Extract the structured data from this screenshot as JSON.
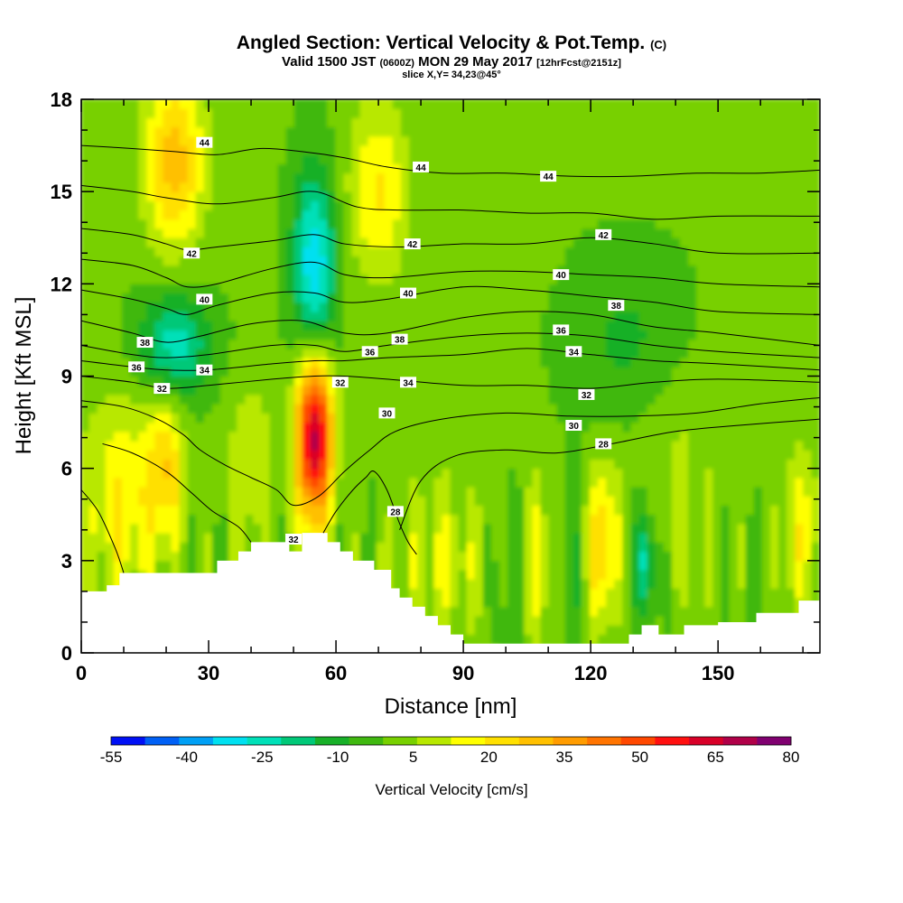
{
  "title": {
    "main": "Angled Section: Vertical Velocity & Pot.Temp.",
    "copyright": "(C)",
    "valid_a": "Valid 1500 JST",
    "valid_z": "(0600Z)",
    "valid_b": "MON 29 May 2017",
    "forecast": "[12hrFcst@2151z]",
    "slice": "slice X,Y= 34,23@45°"
  },
  "chart_data": {
    "type": "heatmap",
    "xlabel": "Distance [nm]",
    "ylabel": "Height [Kft MSL]",
    "xlim": [
      0,
      174
    ],
    "ylim": [
      0,
      18
    ],
    "x_ticks": [
      0,
      30,
      60,
      90,
      120,
      150
    ],
    "y_ticks": [
      0,
      3,
      6,
      9,
      12,
      15,
      18
    ],
    "colorbar": {
      "label": "Vertical Velocity [cm/s]",
      "ticks": [
        -55,
        -40,
        -25,
        -10,
        5,
        20,
        35,
        50,
        65,
        80
      ],
      "colors": [
        "#0010f5",
        "#0060f5",
        "#00a0f5",
        "#00e0f0",
        "#00e0b8",
        "#00c878",
        "#18b028",
        "#40b810",
        "#78d000",
        "#b8e800",
        "#ffff00",
        "#ffe000",
        "#ffc000",
        "#ff9c00",
        "#ff7400",
        "#ff4800",
        "#ff1010",
        "#d80028",
        "#b00048",
        "#800070"
      ]
    },
    "field_features": [
      {
        "x": 55,
        "y": 7,
        "value": 70,
        "sx": 3,
        "sy": 2
      },
      {
        "x": 55,
        "y": 12.5,
        "value": -35,
        "sx": 3.5,
        "sy": 2.2
      },
      {
        "x": 22,
        "y": 10,
        "value": -25,
        "sx": 6,
        "sy": 1.2
      },
      {
        "x": 22,
        "y": 16,
        "value": 30,
        "sx": 5,
        "sy": 2
      },
      {
        "x": 20,
        "y": 6,
        "value": 22,
        "sx": 3,
        "sy": 1.6
      },
      {
        "x": 123,
        "y": 3.5,
        "value": 27,
        "sx": 2.5,
        "sy": 1.8
      },
      {
        "x": 133,
        "y": 3,
        "value": -25,
        "sx": 2,
        "sy": 1.3
      },
      {
        "x": 10,
        "y": 5,
        "value": 18,
        "sx": 7,
        "sy": 2.5
      },
      {
        "x": 70,
        "y": 15,
        "value": 20,
        "sx": 5,
        "sy": 2
      },
      {
        "x": 130,
        "y": 10,
        "value": -10,
        "sx": 10,
        "sy": 2
      },
      {
        "x": 85,
        "y": 3,
        "value": 12,
        "sx": 8,
        "sy": 2
      },
      {
        "x": 108,
        "y": 3,
        "value": 14,
        "sx": 2.5,
        "sy": 2
      },
      {
        "x": 100,
        "y": 2.5,
        "value": -8,
        "sx": 2,
        "sy": 2
      },
      {
        "x": 115,
        "y": 2.5,
        "value": -8,
        "sx": 2,
        "sy": 2
      },
      {
        "x": 170,
        "y": 4,
        "value": 15,
        "sx": 4,
        "sy": 2
      },
      {
        "x": 40,
        "y": 6,
        "value": 12,
        "sx": 4,
        "sy": 2
      },
      {
        "x": 140,
        "y": 6,
        "value": 8,
        "sx": 8,
        "sy": 3
      }
    ],
    "terrain": [
      [
        0,
        2
      ],
      [
        6,
        2
      ],
      [
        6,
        2.2
      ],
      [
        9,
        2.2
      ],
      [
        9,
        2.6
      ],
      [
        12,
        2.6
      ],
      [
        12,
        2.6
      ],
      [
        32,
        2.6
      ],
      [
        32,
        3
      ],
      [
        37,
        3
      ],
      [
        37,
        3.3
      ],
      [
        40,
        3.3
      ],
      [
        40,
        3.6
      ],
      [
        49,
        3.6
      ],
      [
        49,
        3.3
      ],
      [
        52,
        3.3
      ],
      [
        52,
        3.9
      ],
      [
        58,
        3.9
      ],
      [
        58,
        3.6
      ],
      [
        61,
        3.6
      ],
      [
        61,
        3.3
      ],
      [
        64,
        3.3
      ],
      [
        64,
        3
      ],
      [
        69,
        3
      ],
      [
        69,
        2.7
      ],
      [
        73,
        2.7
      ],
      [
        73,
        2.1
      ],
      [
        75,
        2.1
      ],
      [
        75,
        1.8
      ],
      [
        78,
        1.8
      ],
      [
        78,
        1.5
      ],
      [
        81,
        1.5
      ],
      [
        81,
        1.2
      ],
      [
        84,
        1.2
      ],
      [
        84,
        0.9
      ],
      [
        87,
        0.9
      ],
      [
        87,
        0.6
      ],
      [
        90,
        0.6
      ],
      [
        90,
        0.3
      ],
      [
        129,
        0.3
      ],
      [
        129,
        0.6
      ],
      [
        132,
        0.6
      ],
      [
        132,
        0.9
      ],
      [
        136,
        0.9
      ],
      [
        136,
        0.6
      ],
      [
        142,
        0.6
      ],
      [
        142,
        0.9
      ],
      [
        150,
        0.9
      ],
      [
        150,
        1
      ],
      [
        159,
        1
      ],
      [
        159,
        1.3
      ],
      [
        169,
        1.3
      ],
      [
        169,
        1.7
      ],
      [
        174,
        1.7
      ]
    ],
    "contours": [
      {
        "label": "44",
        "points": [
          [
            0,
            16.5
          ],
          [
            12,
            16.4
          ],
          [
            22,
            16.3
          ],
          [
            32,
            16.2
          ],
          [
            42,
            16.4
          ],
          [
            52,
            16.3
          ],
          [
            62,
            16.1
          ],
          [
            72,
            15.8
          ],
          [
            85,
            15.6
          ],
          [
            100,
            15.6
          ],
          [
            115,
            15.5
          ],
          [
            130,
            15.5
          ],
          [
            145,
            15.6
          ],
          [
            160,
            15.6
          ],
          [
            174,
            15.7
          ]
        ]
      },
      {
        "label": "",
        "points": [
          [
            0,
            15.2
          ],
          [
            12,
            15.0
          ],
          [
            20,
            14.8
          ],
          [
            32,
            14.6
          ],
          [
            45,
            14.8
          ],
          [
            55,
            15.0
          ],
          [
            65,
            14.5
          ],
          [
            75,
            14.4
          ],
          [
            90,
            14.4
          ],
          [
            105,
            14.3
          ],
          [
            120,
            14.3
          ],
          [
            135,
            14.1
          ],
          [
            150,
            14.2
          ],
          [
            174,
            14.2
          ]
        ]
      },
      {
        "label": "42",
        "points": [
          [
            0,
            13.8
          ],
          [
            12,
            13.6
          ],
          [
            20,
            13.3
          ],
          [
            25,
            13.1
          ],
          [
            32,
            13.2
          ],
          [
            45,
            13.4
          ],
          [
            55,
            13.6
          ],
          [
            62,
            13.3
          ],
          [
            75,
            13.2
          ],
          [
            90,
            13.3
          ],
          [
            105,
            13.3
          ],
          [
            120,
            13.5
          ],
          [
            135,
            13.3
          ],
          [
            150,
            13.0
          ],
          [
            174,
            13.0
          ]
        ]
      },
      {
        "label": "",
        "points": [
          [
            0,
            12.8
          ],
          [
            12,
            12.6
          ],
          [
            20,
            12.2
          ],
          [
            25,
            11.9
          ],
          [
            32,
            12.0
          ],
          [
            45,
            12.5
          ],
          [
            55,
            12.7
          ],
          [
            62,
            12.3
          ],
          [
            72,
            12.2
          ],
          [
            90,
            12.4
          ],
          [
            105,
            12.4
          ],
          [
            120,
            12.3
          ],
          [
            135,
            12.2
          ],
          [
            150,
            12.0
          ],
          [
            174,
            11.9
          ]
        ]
      },
      {
        "label": "40",
        "points": [
          [
            0,
            11.8
          ],
          [
            12,
            11.5
          ],
          [
            20,
            11.2
          ],
          [
            25,
            11.0
          ],
          [
            32,
            11.3
          ],
          [
            45,
            11.7
          ],
          [
            55,
            11.7
          ],
          [
            62,
            11.4
          ],
          [
            72,
            11.5
          ],
          [
            90,
            11.9
          ],
          [
            105,
            11.8
          ],
          [
            120,
            11.6
          ],
          [
            135,
            11.4
          ],
          [
            150,
            11.1
          ],
          [
            174,
            11.0
          ]
        ]
      },
      {
        "label": "38",
        "points": [
          [
            0,
            10.8
          ],
          [
            12,
            10.4
          ],
          [
            20,
            10.1
          ],
          [
            28,
            10.3
          ],
          [
            40,
            10.7
          ],
          [
            52,
            10.8
          ],
          [
            62,
            10.4
          ],
          [
            72,
            10.4
          ],
          [
            90,
            10.9
          ],
          [
            105,
            11.1
          ],
          [
            120,
            11.0
          ],
          [
            135,
            10.6
          ],
          [
            150,
            10.4
          ],
          [
            174,
            10.0
          ]
        ]
      },
      {
        "label": "36",
        "points": [
          [
            0,
            10.0
          ],
          [
            12,
            9.7
          ],
          [
            20,
            9.6
          ],
          [
            30,
            9.7
          ],
          [
            45,
            10.0
          ],
          [
            55,
            10.0
          ],
          [
            62,
            9.8
          ],
          [
            72,
            10.0
          ],
          [
            90,
            10.3
          ],
          [
            105,
            10.4
          ],
          [
            120,
            10.3
          ],
          [
            135,
            10.0
          ],
          [
            150,
            9.8
          ],
          [
            174,
            9.6
          ]
        ]
      },
      {
        "label": "34",
        "points": [
          [
            0,
            9.5
          ],
          [
            12,
            9.3
          ],
          [
            20,
            9.2
          ],
          [
            30,
            9.2
          ],
          [
            45,
            9.4
          ],
          [
            55,
            9.5
          ],
          [
            62,
            9.5
          ],
          [
            72,
            9.6
          ],
          [
            90,
            9.7
          ],
          [
            105,
            9.9
          ],
          [
            120,
            9.7
          ],
          [
            135,
            9.5
          ],
          [
            150,
            9.4
          ],
          [
            174,
            9.2
          ]
        ]
      },
      {
        "label": "32",
        "points": [
          [
            0,
            9.0
          ],
          [
            12,
            8.8
          ],
          [
            20,
            8.6
          ],
          [
            30,
            8.7
          ],
          [
            45,
            8.9
          ],
          [
            55,
            9.0
          ],
          [
            62,
            9.0
          ],
          [
            72,
            8.9
          ],
          [
            90,
            8.7
          ],
          [
            105,
            8.7
          ],
          [
            120,
            8.6
          ],
          [
            135,
            8.8
          ],
          [
            150,
            8.9
          ],
          [
            174,
            8.8
          ]
        ]
      },
      {
        "label": "30",
        "points": [
          [
            0,
            8.2
          ],
          [
            10,
            8.0
          ],
          [
            18,
            7.6
          ],
          [
            24,
            7.1
          ],
          [
            28,
            6.6
          ],
          [
            34,
            6.1
          ],
          [
            40,
            5.7
          ],
          [
            46,
            5.3
          ],
          [
            50,
            4.8
          ],
          [
            56,
            5.1
          ],
          [
            62,
            5.9
          ],
          [
            68,
            6.6
          ],
          [
            74,
            7.2
          ],
          [
            85,
            7.6
          ],
          [
            100,
            7.8
          ],
          [
            115,
            7.7
          ],
          [
            130,
            7.7
          ],
          [
            145,
            7.8
          ],
          [
            160,
            8.1
          ],
          [
            174,
            8.3
          ]
        ]
      },
      {
        "label": "28",
        "points": [
          [
            75,
            4.0
          ],
          [
            80,
            5.6
          ],
          [
            88,
            6.4
          ],
          [
            100,
            6.6
          ],
          [
            112,
            6.5
          ],
          [
            125,
            6.8
          ],
          [
            140,
            7.2
          ],
          [
            155,
            7.4
          ],
          [
            174,
            7.6
          ]
        ]
      },
      {
        "label": "",
        "points": [
          [
            5,
            6.8
          ],
          [
            12,
            6.5
          ],
          [
            20,
            5.9
          ],
          [
            26,
            5.2
          ],
          [
            31,
            4.6
          ],
          [
            37,
            4.1
          ],
          [
            40,
            3.6
          ]
        ]
      },
      {
        "label": "",
        "points": [
          [
            0,
            5.3
          ],
          [
            4,
            4.6
          ],
          [
            8,
            3.4
          ],
          [
            10,
            2.6
          ]
        ]
      },
      {
        "label": "",
        "points": [
          [
            57,
            3.9
          ],
          [
            60,
            4.6
          ],
          [
            64,
            5.3
          ],
          [
            67,
            5.7
          ],
          [
            69,
            5.9
          ],
          [
            72,
            5.3
          ],
          [
            75,
            4.2
          ],
          [
            77,
            3.6
          ],
          [
            79,
            3.2
          ]
        ]
      }
    ],
    "contour_label_positions": [
      {
        "text": "44",
        "x": 29,
        "y": 16.6
      },
      {
        "text": "44",
        "x": 80,
        "y": 15.8
      },
      {
        "text": "44",
        "x": 110,
        "y": 15.5
      },
      {
        "text": "42",
        "x": 26,
        "y": 13.0
      },
      {
        "text": "42",
        "x": 78,
        "y": 13.3
      },
      {
        "text": "42",
        "x": 123,
        "y": 13.6
      },
      {
        "text": "40",
        "x": 29,
        "y": 11.5
      },
      {
        "text": "40",
        "x": 77,
        "y": 11.7
      },
      {
        "text": "40",
        "x": 113,
        "y": 12.3
      },
      {
        "text": "38",
        "x": 15,
        "y": 10.1
      },
      {
        "text": "38",
        "x": 75,
        "y": 10.2
      },
      {
        "text": "38",
        "x": 126,
        "y": 11.3
      },
      {
        "text": "36",
        "x": 13,
        "y": 9.3
      },
      {
        "text": "36",
        "x": 68,
        "y": 9.8
      },
      {
        "text": "36",
        "x": 113,
        "y": 10.5
      },
      {
        "text": "34",
        "x": 29,
        "y": 9.2
      },
      {
        "text": "34",
        "x": 77,
        "y": 8.8
      },
      {
        "text": "34",
        "x": 116,
        "y": 9.8
      },
      {
        "text": "32",
        "x": 19,
        "y": 8.6
      },
      {
        "text": "32",
        "x": 61,
        "y": 8.8
      },
      {
        "text": "32",
        "x": 119,
        "y": 8.4
      },
      {
        "text": "30",
        "x": 72,
        "y": 7.8
      },
      {
        "text": "30",
        "x": 116,
        "y": 7.4
      },
      {
        "text": "28",
        "x": 123,
        "y": 6.8
      },
      {
        "text": "28",
        "x": 74,
        "y": 4.6
      },
      {
        "text": "32",
        "x": 50,
        "y": 3.7
      }
    ]
  }
}
